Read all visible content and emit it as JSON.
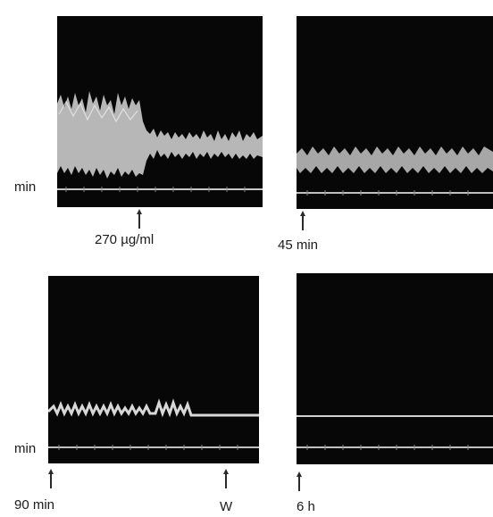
{
  "labels": {
    "min_top": "min",
    "min_bottom": "min",
    "concentration": "270 µg/ml",
    "time_45": "45 min",
    "time_90": "90 min",
    "washout": "W",
    "time_6h": "6 h"
  },
  "colors": {
    "panel_background": "#070707",
    "trace": "#d8d8d8",
    "baseline": "#bdbdbd",
    "page_background": "#ffffff"
  },
  "icons": {
    "marker": "up-arrow-icon"
  }
}
